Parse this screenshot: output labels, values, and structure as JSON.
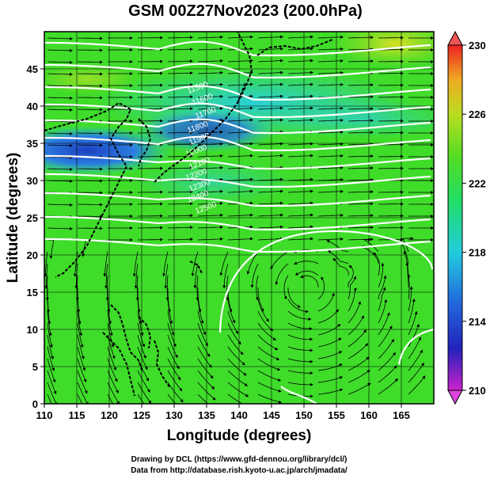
{
  "title": "GSM 00Z27Nov2023 (200.0hPa)",
  "x_axis": {
    "label": "Longitude (degrees)",
    "range": [
      110,
      170
    ],
    "ticks": [
      "110",
      "115",
      "120",
      "125",
      "130",
      "135",
      "140",
      "145",
      "150",
      "155",
      "160",
      "165"
    ]
  },
  "y_axis": {
    "label": "Latitude  (degrees)",
    "range": [
      0,
      50
    ],
    "ticks": [
      "0",
      "5",
      "10",
      "15",
      "20",
      "25",
      "30",
      "35",
      "40",
      "45"
    ]
  },
  "colorbar": {
    "ticks": [
      "210",
      "214",
      "218",
      "222",
      "226",
      "230"
    ],
    "range": [
      210,
      230
    ]
  },
  "contour_labels": [
    "11500",
    "11600",
    "11700",
    "11800",
    "11900",
    "12000",
    "12100",
    "12200",
    "12300",
    "12400",
    "12500"
  ],
  "credits": {
    "line1": "Drawing by DCL (https://www.gfd-dennou.org/library/dcl/)",
    "line2": "Data from http://database.rish.kyoto-u.ac.jp/arch/jmadata/"
  },
  "colors": {
    "field_green": "#33dd22",
    "jet_blue": "#2255cc",
    "cyan": "#22ccdd",
    "yellow": "#ccdd22",
    "contour": "#ffffff",
    "coast": "#000000"
  }
}
